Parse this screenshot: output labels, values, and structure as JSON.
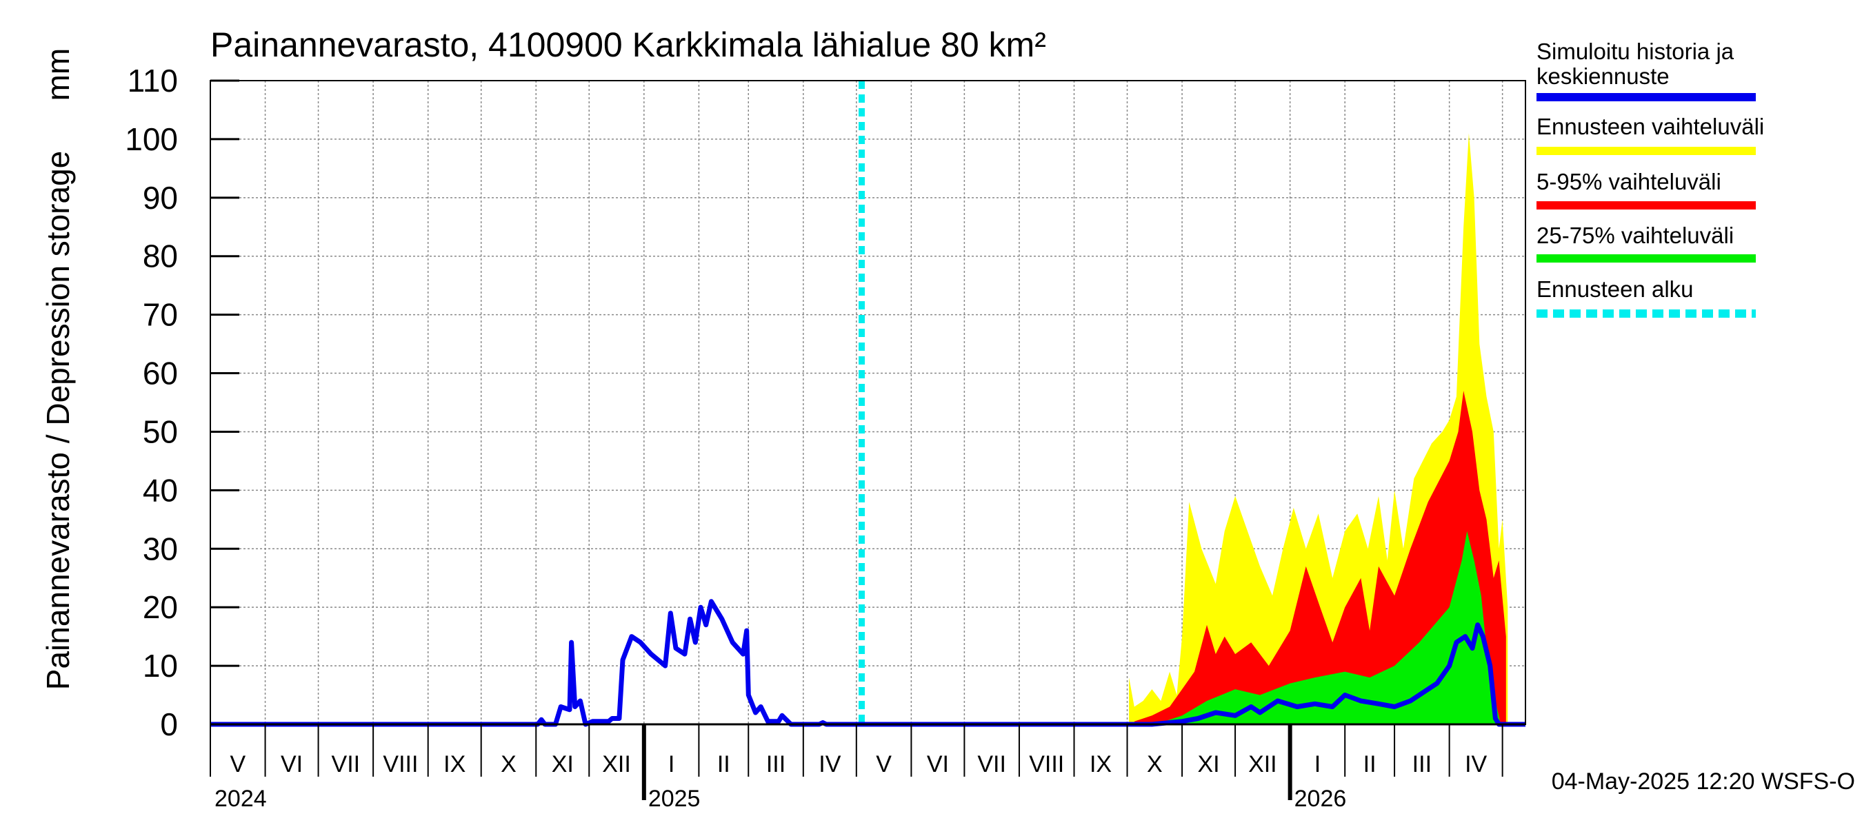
{
  "chart_data": {
    "type": "area",
    "title": "Painannevarasto, 4100900 Karkkimala lähialue 80 km²",
    "ylabel": "Painannevarasto / Depression storage",
    "yunit": "mm",
    "ylim": [
      0,
      110
    ],
    "yticks": [
      0,
      10,
      20,
      30,
      40,
      50,
      60,
      70,
      80,
      90,
      100,
      110
    ],
    "xlim": [
      "2024-05-01",
      "2026-05-14"
    ],
    "grid": true,
    "legend_position": "right",
    "forecast_start": "2025-05-04",
    "timestamp": "04-May-2025 12:20 WSFS-O",
    "months": [
      {
        "label": "V",
        "start": "2024-05-01"
      },
      {
        "label": "VI",
        "start": "2024-06-01"
      },
      {
        "label": "VII",
        "start": "2024-07-01"
      },
      {
        "label": "VIII",
        "start": "2024-08-01"
      },
      {
        "label": "IX",
        "start": "2024-09-01"
      },
      {
        "label": "X",
        "start": "2024-10-01"
      },
      {
        "label": "XI",
        "start": "2024-11-01"
      },
      {
        "label": "XII",
        "start": "2024-12-01"
      },
      {
        "label": "I",
        "start": "2025-01-01"
      },
      {
        "label": "II",
        "start": "2025-02-01"
      },
      {
        "label": "III",
        "start": "2025-03-01"
      },
      {
        "label": "IV",
        "start": "2025-04-01"
      },
      {
        "label": "V",
        "start": "2025-05-01"
      },
      {
        "label": "VI",
        "start": "2025-06-01"
      },
      {
        "label": "VII",
        "start": "2025-07-01"
      },
      {
        "label": "VIII",
        "start": "2025-08-01"
      },
      {
        "label": "IX",
        "start": "2025-09-01"
      },
      {
        "label": "X",
        "start": "2025-10-01"
      },
      {
        "label": "XI",
        "start": "2025-11-01"
      },
      {
        "label": "XII",
        "start": "2025-12-01"
      },
      {
        "label": "I",
        "start": "2026-01-01"
      },
      {
        "label": "II",
        "start": "2026-02-01"
      },
      {
        "label": "III",
        "start": "2026-03-01"
      },
      {
        "label": "IV",
        "start": "2026-04-01"
      },
      {
        "label": "",
        "start": "2026-05-01"
      }
    ],
    "years": [
      {
        "label": "2024",
        "start": "2024-05-01"
      },
      {
        "label": "2025",
        "start": "2025-01-01"
      },
      {
        "label": "2026",
        "start": "2026-01-01"
      }
    ],
    "legend": [
      {
        "label": "Simuloitu historia ja keskiennuste",
        "color": "#0000ee",
        "style": "solid"
      },
      {
        "label": "Ennusteen vaihteluväli",
        "color": "#ffff00",
        "style": "solid"
      },
      {
        "label": "5-95% vaihteluväli",
        "color": "#ff0000",
        "style": "solid"
      },
      {
        "label": "25-75% vaihteluväli",
        "color": "#00ee00",
        "style": "solid"
      },
      {
        "label": "Ennusteen alku",
        "color": "#00eeee",
        "style": "dashed"
      }
    ],
    "series": [
      {
        "name": "Simuloitu historia ja keskiennuste",
        "points": [
          [
            "2024-05-01",
            0
          ],
          [
            "2024-11-02",
            0
          ],
          [
            "2024-11-04",
            0.8
          ],
          [
            "2024-11-06",
            0
          ],
          [
            "2024-11-12",
            0
          ],
          [
            "2024-11-15",
            3
          ],
          [
            "2024-11-20",
            2.5
          ],
          [
            "2024-11-21",
            14
          ],
          [
            "2024-11-23",
            3
          ],
          [
            "2024-11-26",
            4
          ],
          [
            "2024-11-29",
            0
          ],
          [
            "2024-12-03",
            0.5
          ],
          [
            "2024-12-12",
            0.5
          ],
          [
            "2024-12-14",
            1
          ],
          [
            "2024-12-18",
            1
          ],
          [
            "2024-12-20",
            11
          ],
          [
            "2024-12-25",
            15
          ],
          [
            "2024-12-30",
            14
          ],
          [
            "2025-01-05",
            12
          ],
          [
            "2025-01-13",
            10
          ],
          [
            "2025-01-16",
            19
          ],
          [
            "2025-01-19",
            13
          ],
          [
            "2025-01-24",
            12
          ],
          [
            "2025-01-27",
            18
          ],
          [
            "2025-01-30",
            14
          ],
          [
            "2025-02-02",
            20
          ],
          [
            "2025-02-05",
            17
          ],
          [
            "2025-02-08",
            21
          ],
          [
            "2025-02-14",
            18
          ],
          [
            "2025-02-20",
            14
          ],
          [
            "2025-02-26",
            12
          ],
          [
            "2025-02-28",
            16
          ],
          [
            "2025-03-01",
            5
          ],
          [
            "2025-03-05",
            2
          ],
          [
            "2025-03-08",
            3
          ],
          [
            "2025-03-12",
            0.5
          ],
          [
            "2025-03-18",
            0.5
          ],
          [
            "2025-03-20",
            1.5
          ],
          [
            "2025-03-25",
            0
          ],
          [
            "2025-04-10",
            0
          ],
          [
            "2025-04-12",
            0.3
          ],
          [
            "2025-04-14",
            0
          ],
          [
            "2025-10-15",
            0
          ],
          [
            "2025-11-01",
            0.5
          ],
          [
            "2025-11-10",
            1
          ],
          [
            "2025-11-20",
            2
          ],
          [
            "2025-12-01",
            1.5
          ],
          [
            "2025-12-10",
            3
          ],
          [
            "2025-12-15",
            2
          ],
          [
            "2025-12-25",
            4
          ],
          [
            "2026-01-05",
            3
          ],
          [
            "2026-01-15",
            3.5
          ],
          [
            "2026-01-25",
            3
          ],
          [
            "2026-02-01",
            5
          ],
          [
            "2026-02-10",
            4
          ],
          [
            "2026-02-20",
            3.5
          ],
          [
            "2026-03-01",
            3
          ],
          [
            "2026-03-10",
            4
          ],
          [
            "2026-03-20",
            6
          ],
          [
            "2026-03-25",
            7
          ],
          [
            "2026-04-01",
            10
          ],
          [
            "2026-04-05",
            14
          ],
          [
            "2026-04-10",
            15
          ],
          [
            "2026-04-14",
            13
          ],
          [
            "2026-04-17",
            17
          ],
          [
            "2026-04-20",
            15
          ],
          [
            "2026-04-24",
            10
          ],
          [
            "2026-04-27",
            1
          ],
          [
            "2026-04-29",
            0
          ],
          [
            "2026-05-14",
            0
          ]
        ]
      },
      {
        "name": "Ennusteen vaihteluväli",
        "band": [
          [
            "2025-10-02",
            0,
            8
          ],
          [
            "2025-10-05",
            0,
            3
          ],
          [
            "2025-10-10",
            0,
            4
          ],
          [
            "2025-10-15",
            0,
            6
          ],
          [
            "2025-10-20",
            0,
            4
          ],
          [
            "2025-10-25",
            0,
            9
          ],
          [
            "2025-10-29",
            0,
            5
          ],
          [
            "2025-11-01",
            0,
            15
          ],
          [
            "2025-11-05",
            0,
            38
          ],
          [
            "2025-11-12",
            0,
            30
          ],
          [
            "2025-11-20",
            0,
            24
          ],
          [
            "2025-11-25",
            0,
            33
          ],
          [
            "2025-12-01",
            0,
            39
          ],
          [
            "2025-12-08",
            0,
            33
          ],
          [
            "2025-12-15",
            0,
            27
          ],
          [
            "2025-12-22",
            0,
            22
          ],
          [
            "2025-12-28",
            0,
            30
          ],
          [
            "2026-01-03",
            0,
            37
          ],
          [
            "2026-01-10",
            0,
            30
          ],
          [
            "2026-01-17",
            0,
            36
          ],
          [
            "2026-01-25",
            0,
            25
          ],
          [
            "2026-02-01",
            0,
            33
          ],
          [
            "2026-02-08",
            0,
            36
          ],
          [
            "2026-02-14",
            0,
            30
          ],
          [
            "2026-02-20",
            0,
            39
          ],
          [
            "2026-02-25",
            0,
            28
          ],
          [
            "2026-03-01",
            0,
            40
          ],
          [
            "2026-03-06",
            0,
            30
          ],
          [
            "2026-03-12",
            0,
            42
          ],
          [
            "2026-03-17",
            0,
            45
          ],
          [
            "2026-03-22",
            0,
            48
          ],
          [
            "2026-03-28",
            0,
            50
          ],
          [
            "2026-04-01",
            0,
            52
          ],
          [
            "2026-04-05",
            0,
            56
          ],
          [
            "2026-04-09",
            0,
            85
          ],
          [
            "2026-04-12",
            0,
            101
          ],
          [
            "2026-04-15",
            0,
            90
          ],
          [
            "2026-04-18",
            0,
            65
          ],
          [
            "2026-04-22",
            0,
            56
          ],
          [
            "2026-04-26",
            0,
            50
          ],
          [
            "2026-04-29",
            0,
            30
          ],
          [
            "2026-05-01",
            0,
            35
          ],
          [
            "2026-05-04",
            0,
            20
          ]
        ]
      },
      {
        "name": "5-95% vaihteluväli",
        "band": [
          [
            "2025-10-05",
            0,
            0.5
          ],
          [
            "2025-10-15",
            0,
            1.5
          ],
          [
            "2025-10-25",
            0,
            3
          ],
          [
            "2025-11-01",
            0,
            6
          ],
          [
            "2025-11-08",
            0,
            9
          ],
          [
            "2025-11-15",
            0,
            17
          ],
          [
            "2025-11-20",
            0,
            12
          ],
          [
            "2025-11-25",
            0,
            15
          ],
          [
            "2025-12-01",
            0,
            12
          ],
          [
            "2025-12-10",
            0,
            14
          ],
          [
            "2025-12-20",
            0,
            10
          ],
          [
            "2026-01-01",
            0,
            16
          ],
          [
            "2026-01-10",
            0,
            27
          ],
          [
            "2026-01-18",
            0,
            20
          ],
          [
            "2026-01-25",
            0,
            14
          ],
          [
            "2026-02-01",
            0,
            20
          ],
          [
            "2026-02-10",
            0,
            25
          ],
          [
            "2026-02-15",
            0,
            16
          ],
          [
            "2026-02-20",
            0,
            27
          ],
          [
            "2026-03-01",
            0,
            22
          ],
          [
            "2026-03-10",
            0,
            30
          ],
          [
            "2026-03-20",
            0,
            38
          ],
          [
            "2026-04-01",
            0,
            45
          ],
          [
            "2026-04-06",
            0,
            50
          ],
          [
            "2026-04-09",
            0,
            57
          ],
          [
            "2026-04-14",
            0,
            50
          ],
          [
            "2026-04-18",
            0,
            40
          ],
          [
            "2026-04-22",
            0,
            35
          ],
          [
            "2026-04-26",
            0,
            25
          ],
          [
            "2026-04-29",
            0,
            28
          ],
          [
            "2026-05-03",
            0,
            15
          ]
        ]
      },
      {
        "name": "25-75% vaihteluväli",
        "band": [
          [
            "2025-10-20",
            0,
            0.3
          ],
          [
            "2025-11-01",
            0,
            1.5
          ],
          [
            "2025-11-15",
            0,
            4
          ],
          [
            "2025-12-01",
            0,
            6
          ],
          [
            "2025-12-15",
            0,
            5
          ],
          [
            "2026-01-01",
            0,
            7
          ],
          [
            "2026-01-15",
            0,
            8
          ],
          [
            "2026-02-01",
            0,
            9
          ],
          [
            "2026-02-15",
            0,
            8
          ],
          [
            "2026-03-01",
            0,
            10
          ],
          [
            "2026-03-15",
            0,
            14
          ],
          [
            "2026-04-01",
            0,
            20
          ],
          [
            "2026-04-08",
            0,
            28
          ],
          [
            "2026-04-11",
            0,
            33
          ],
          [
            "2026-04-15",
            0,
            28
          ],
          [
            "2026-04-19",
            0,
            22
          ],
          [
            "2026-04-23",
            0,
            10
          ],
          [
            "2026-04-27",
            0,
            4
          ],
          [
            "2026-04-30",
            0,
            0
          ]
        ]
      }
    ]
  }
}
